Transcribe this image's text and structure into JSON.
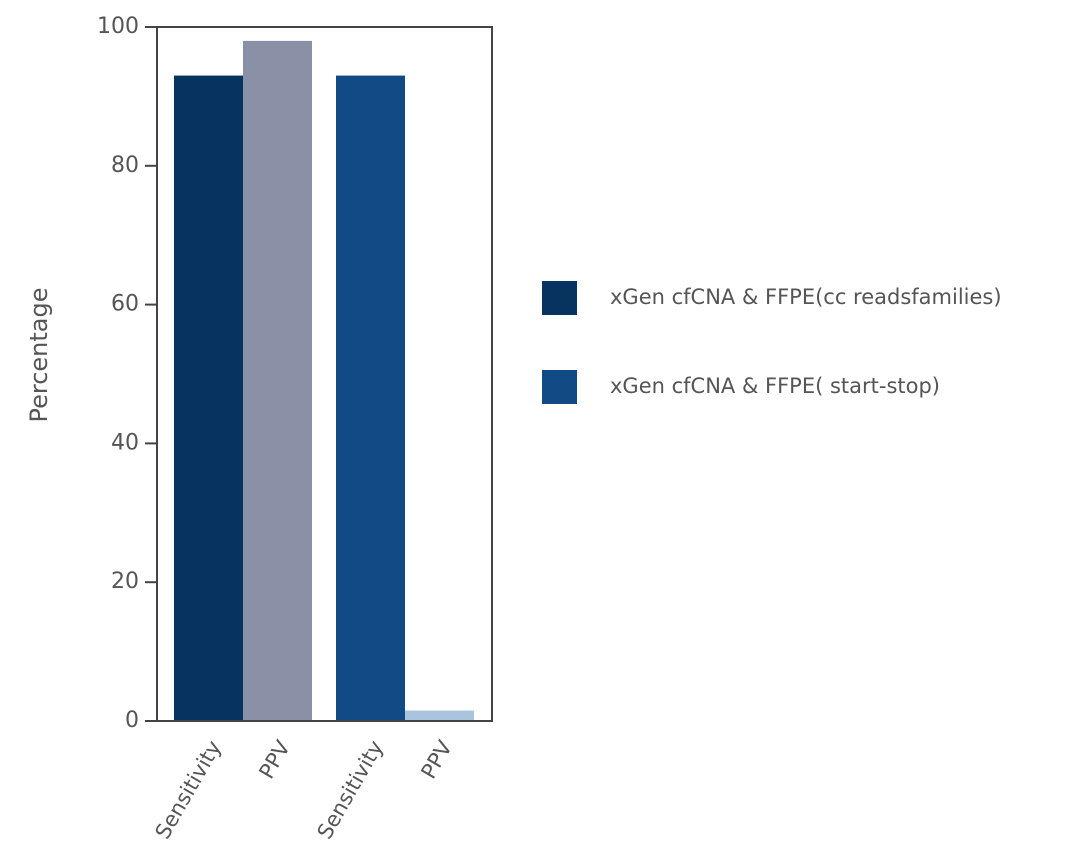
{
  "chart_data": {
    "type": "bar",
    "y_label": "Percentage",
    "categories": [
      "Sensitivity",
      "PPV",
      "Sensitivity",
      "PPV"
    ],
    "bar_colors": [
      "#06335f",
      "#8a91a6",
      "#114a84",
      "#a9c4de"
    ],
    "series": [
      {
        "name": "xGen cfCNA & FFPE(cc readsfamilies)",
        "color": "#06335f",
        "values": [
          93,
          98,
          null,
          null
        ]
      },
      {
        "name": "xGen cfCNA & FFPE( start-stop)",
        "color": "#114a84",
        "values": [
          null,
          null,
          93,
          1.5
        ]
      }
    ],
    "ylim": [
      0,
      100
    ],
    "yticks": [
      0,
      20,
      40,
      60,
      80,
      100
    ],
    "grid": false
  }
}
